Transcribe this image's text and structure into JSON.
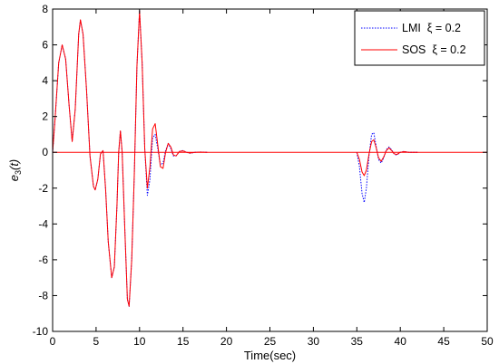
{
  "chart_data": {
    "type": "line",
    "xlabel": "Time(sec)",
    "ylabel": "e",
    "ylabel_sub": "3",
    "ylabel_tail": "(t)",
    "xlim": [
      0,
      50
    ],
    "ylim": [
      -10,
      8
    ],
    "xticks": [
      0,
      5,
      10,
      15,
      20,
      25,
      30,
      35,
      40,
      45,
      50
    ],
    "yticks": [
      -10,
      -8,
      -6,
      -4,
      -2,
      0,
      2,
      4,
      6,
      8
    ],
    "grid": false,
    "legend_position": "top-right",
    "series": [
      {
        "name": "LMI  ξ = 0.2",
        "color": "#0000ff",
        "style": "dotted",
        "points": [
          [
            0,
            0
          ],
          [
            0.3,
            2.0
          ],
          [
            0.7,
            5.0
          ],
          [
            1.1,
            6.0
          ],
          [
            1.5,
            5.2
          ],
          [
            1.9,
            2.6
          ],
          [
            2.25,
            0.6
          ],
          [
            2.6,
            2.4
          ],
          [
            3.0,
            6.6
          ],
          [
            3.2,
            7.4
          ],
          [
            3.5,
            6.6
          ],
          [
            3.9,
            3.5
          ],
          [
            4.3,
            -0.2
          ],
          [
            4.7,
            -1.9
          ],
          [
            4.9,
            -2.1
          ],
          [
            5.2,
            -1.5
          ],
          [
            5.5,
            -0.1
          ],
          [
            5.8,
            0.1
          ],
          [
            6.1,
            -2.1
          ],
          [
            6.4,
            -5.0
          ],
          [
            6.8,
            -7.0
          ],
          [
            7.1,
            -6.4
          ],
          [
            7.4,
            -3.0
          ],
          [
            7.6,
            0.0
          ],
          [
            7.8,
            1.2
          ],
          [
            8.0,
            0.0
          ],
          [
            8.3,
            -4.2
          ],
          [
            8.6,
            -8.2
          ],
          [
            8.8,
            -8.6
          ],
          [
            9.1,
            -6.0
          ],
          [
            9.4,
            -1.2
          ],
          [
            9.7,
            4.8
          ],
          [
            10.0,
            7.9
          ],
          [
            10.3,
            5.0
          ],
          [
            10.6,
            0.2
          ],
          [
            10.9,
            -2.4
          ],
          [
            11.2,
            -1.5
          ],
          [
            11.5,
            0.8
          ],
          [
            11.8,
            1.0
          ],
          [
            12.1,
            0.2
          ],
          [
            12.4,
            -0.7
          ],
          [
            12.7,
            -0.6
          ],
          [
            13.0,
            0.1
          ],
          [
            13.3,
            0.5
          ],
          [
            13.6,
            0.2
          ],
          [
            13.9,
            -0.2
          ],
          [
            14.2,
            -0.2
          ],
          [
            14.6,
            0.05
          ],
          [
            15.0,
            0.1
          ],
          [
            15.4,
            0.0
          ],
          [
            15.8,
            -0.05
          ],
          [
            16.4,
            0.0
          ],
          [
            17.0,
            0.02
          ],
          [
            17.8,
            0.0
          ],
          [
            35.0,
            0.0
          ],
          [
            35.3,
            -0.8
          ],
          [
            35.6,
            -2.3
          ],
          [
            35.85,
            -2.8
          ],
          [
            36.1,
            -2.0
          ],
          [
            36.4,
            -0.2
          ],
          [
            36.7,
            1.0
          ],
          [
            36.95,
            1.1
          ],
          [
            37.2,
            0.4
          ],
          [
            37.5,
            -0.4
          ],
          [
            37.8,
            -0.6
          ],
          [
            38.1,
            -0.3
          ],
          [
            38.4,
            0.15
          ],
          [
            38.7,
            0.3
          ],
          [
            39.0,
            0.15
          ],
          [
            39.3,
            -0.1
          ],
          [
            39.6,
            -0.15
          ],
          [
            40.0,
            0.0
          ],
          [
            40.4,
            0.05
          ],
          [
            41.0,
            0.0
          ],
          [
            42.0,
            0.0
          ]
        ]
      },
      {
        "name": "SOS  ξ = 0.2",
        "color": "#ff0000",
        "style": "solid",
        "points": [
          [
            0,
            0
          ],
          [
            0.3,
            2.0
          ],
          [
            0.7,
            5.0
          ],
          [
            1.1,
            6.0
          ],
          [
            1.5,
            5.2
          ],
          [
            1.9,
            2.6
          ],
          [
            2.25,
            0.6
          ],
          [
            2.6,
            2.4
          ],
          [
            3.0,
            6.6
          ],
          [
            3.2,
            7.4
          ],
          [
            3.5,
            6.6
          ],
          [
            3.9,
            3.5
          ],
          [
            4.3,
            -0.2
          ],
          [
            4.7,
            -1.9
          ],
          [
            4.9,
            -2.1
          ],
          [
            5.2,
            -1.5
          ],
          [
            5.5,
            -0.1
          ],
          [
            5.8,
            0.1
          ],
          [
            6.1,
            -2.1
          ],
          [
            6.4,
            -5.0
          ],
          [
            6.8,
            -7.0
          ],
          [
            7.1,
            -6.4
          ],
          [
            7.4,
            -3.0
          ],
          [
            7.6,
            0.0
          ],
          [
            7.8,
            1.2
          ],
          [
            8.0,
            0.0
          ],
          [
            8.3,
            -4.2
          ],
          [
            8.6,
            -8.2
          ],
          [
            8.8,
            -8.6
          ],
          [
            9.1,
            -6.0
          ],
          [
            9.4,
            -1.2
          ],
          [
            9.7,
            4.8
          ],
          [
            10.0,
            7.9
          ],
          [
            10.3,
            5.0
          ],
          [
            10.6,
            0.2
          ],
          [
            10.9,
            -2.0
          ],
          [
            11.2,
            -0.8
          ],
          [
            11.5,
            1.3
          ],
          [
            11.8,
            1.6
          ],
          [
            12.1,
            0.4
          ],
          [
            12.4,
            -0.8
          ],
          [
            12.7,
            -0.9
          ],
          [
            13.0,
            0.0
          ],
          [
            13.3,
            0.5
          ],
          [
            13.6,
            0.3
          ],
          [
            13.9,
            -0.15
          ],
          [
            14.2,
            -0.2
          ],
          [
            14.6,
            0.05
          ],
          [
            15.0,
            0.08
          ],
          [
            15.4,
            0.0
          ],
          [
            15.8,
            -0.04
          ],
          [
            16.4,
            0.0
          ],
          [
            17.0,
            0.01
          ],
          [
            17.8,
            0.0
          ],
          [
            35.0,
            0.0
          ],
          [
            35.3,
            -0.4
          ],
          [
            35.6,
            -1.1
          ],
          [
            35.85,
            -1.3
          ],
          [
            36.1,
            -1.0
          ],
          [
            36.4,
            -0.1
          ],
          [
            36.7,
            0.6
          ],
          [
            36.95,
            0.7
          ],
          [
            37.2,
            0.3
          ],
          [
            37.5,
            -0.3
          ],
          [
            37.8,
            -0.5
          ],
          [
            38.1,
            -0.25
          ],
          [
            38.4,
            0.1
          ],
          [
            38.7,
            0.25
          ],
          [
            39.0,
            0.1
          ],
          [
            39.3,
            -0.08
          ],
          [
            39.6,
            -0.12
          ],
          [
            40.0,
            0.0
          ],
          [
            40.4,
            0.04
          ],
          [
            41.0,
            0.0
          ],
          [
            42.0,
            0.0
          ]
        ]
      }
    ],
    "baseline": {
      "color": "#ff0000",
      "segments": [
        [
          0,
          50
        ]
      ]
    }
  }
}
